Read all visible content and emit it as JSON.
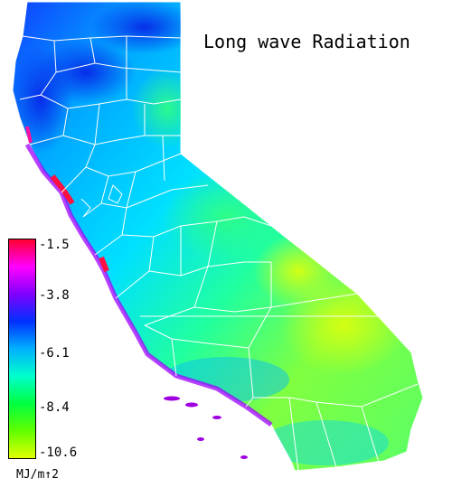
{
  "title": "Long wave Radiation",
  "legend": {
    "unit": "MJ/m↑2",
    "ticks": [
      {
        "value": "-1.5"
      },
      {
        "value": "-3.8"
      },
      {
        "value": "-6.1"
      },
      {
        "value": "-8.4"
      },
      {
        "value": "-10.6"
      }
    ],
    "colors": [
      "#ff0030",
      "#ff00ff",
      "#8000ff",
      "#0030ff",
      "#00b0ff",
      "#00ffcc",
      "#00ff40",
      "#60ff00",
      "#e0ff00"
    ]
  },
  "map": {
    "region": "California",
    "colors": {
      "north_coast": "#1050ff",
      "interior": "#00c8ff",
      "central_valley": "#30ffa0",
      "desert": "#b0ff20",
      "coast_edge": "#8000ff",
      "boundary": "#ffffff"
    }
  }
}
